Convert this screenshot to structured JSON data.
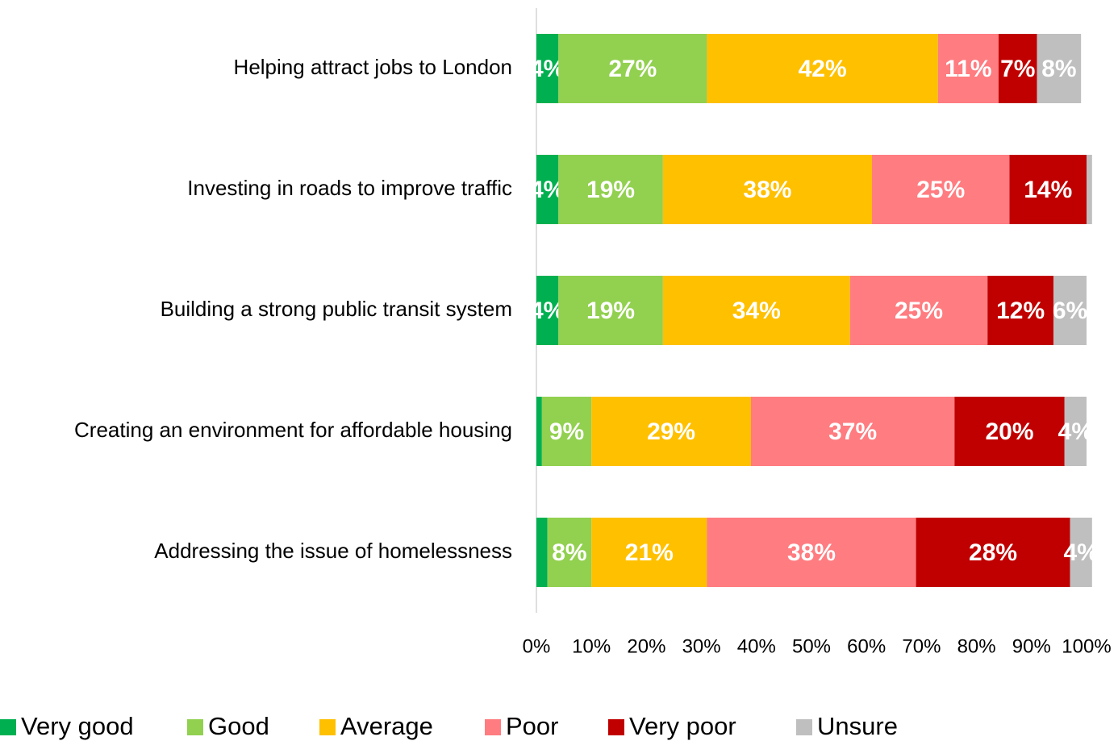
{
  "chart_data": {
    "type": "bar",
    "orientation": "horizontal",
    "stacked": true,
    "categories": [
      "Helping attract jobs to London",
      "Investing in roads to improve traffic",
      "Building a strong public transit system",
      "Creating an environment for affordable housing",
      "Addressing the issue of homelessness"
    ],
    "series": [
      {
        "name": "Very good",
        "color": "#00b050",
        "values": [
          4,
          4,
          4,
          1,
          2
        ],
        "value_labels": [
          "4%",
          "4%",
          "4%",
          null,
          null
        ]
      },
      {
        "name": "Good",
        "color": "#92d050",
        "values": [
          27,
          19,
          19,
          9,
          8
        ],
        "value_labels": [
          "27%",
          "19%",
          "19%",
          "9%",
          "8%"
        ]
      },
      {
        "name": "Average",
        "color": "#ffc000",
        "values": [
          42,
          38,
          34,
          29,
          21
        ],
        "value_labels": [
          "42%",
          "38%",
          "34%",
          "29%",
          "21%"
        ]
      },
      {
        "name": "Poor",
        "color": "#ff7c80",
        "values": [
          11,
          25,
          25,
          37,
          38
        ],
        "value_labels": [
          "11%",
          "25%",
          "25%",
          "37%",
          "38%"
        ]
      },
      {
        "name": "Very poor",
        "color": "#c00000",
        "values": [
          7,
          14,
          12,
          20,
          28
        ],
        "value_labels": [
          "7%",
          "14%",
          "12%",
          "20%",
          "28%"
        ]
      },
      {
        "name": "Unsure",
        "color": "#bfbfbf",
        "values": [
          8,
          1,
          6,
          4,
          4
        ],
        "value_labels": [
          "8%",
          null,
          "6%",
          "4%",
          "4%"
        ]
      }
    ],
    "xlim": [
      0,
      100
    ],
    "xticks": [
      {
        "value": 0,
        "label": "0%"
      },
      {
        "value": 10,
        "label": "10%"
      },
      {
        "value": 20,
        "label": "20%"
      },
      {
        "value": 30,
        "label": "30%"
      },
      {
        "value": 40,
        "label": "40%"
      },
      {
        "value": 50,
        "label": "50%"
      },
      {
        "value": 60,
        "label": "60%"
      },
      {
        "value": 70,
        "label": "70%"
      },
      {
        "value": 80,
        "label": "80%"
      },
      {
        "value": 90,
        "label": "90%"
      },
      {
        "value": 100,
        "label": "100%"
      }
    ],
    "legend": "bottom"
  }
}
